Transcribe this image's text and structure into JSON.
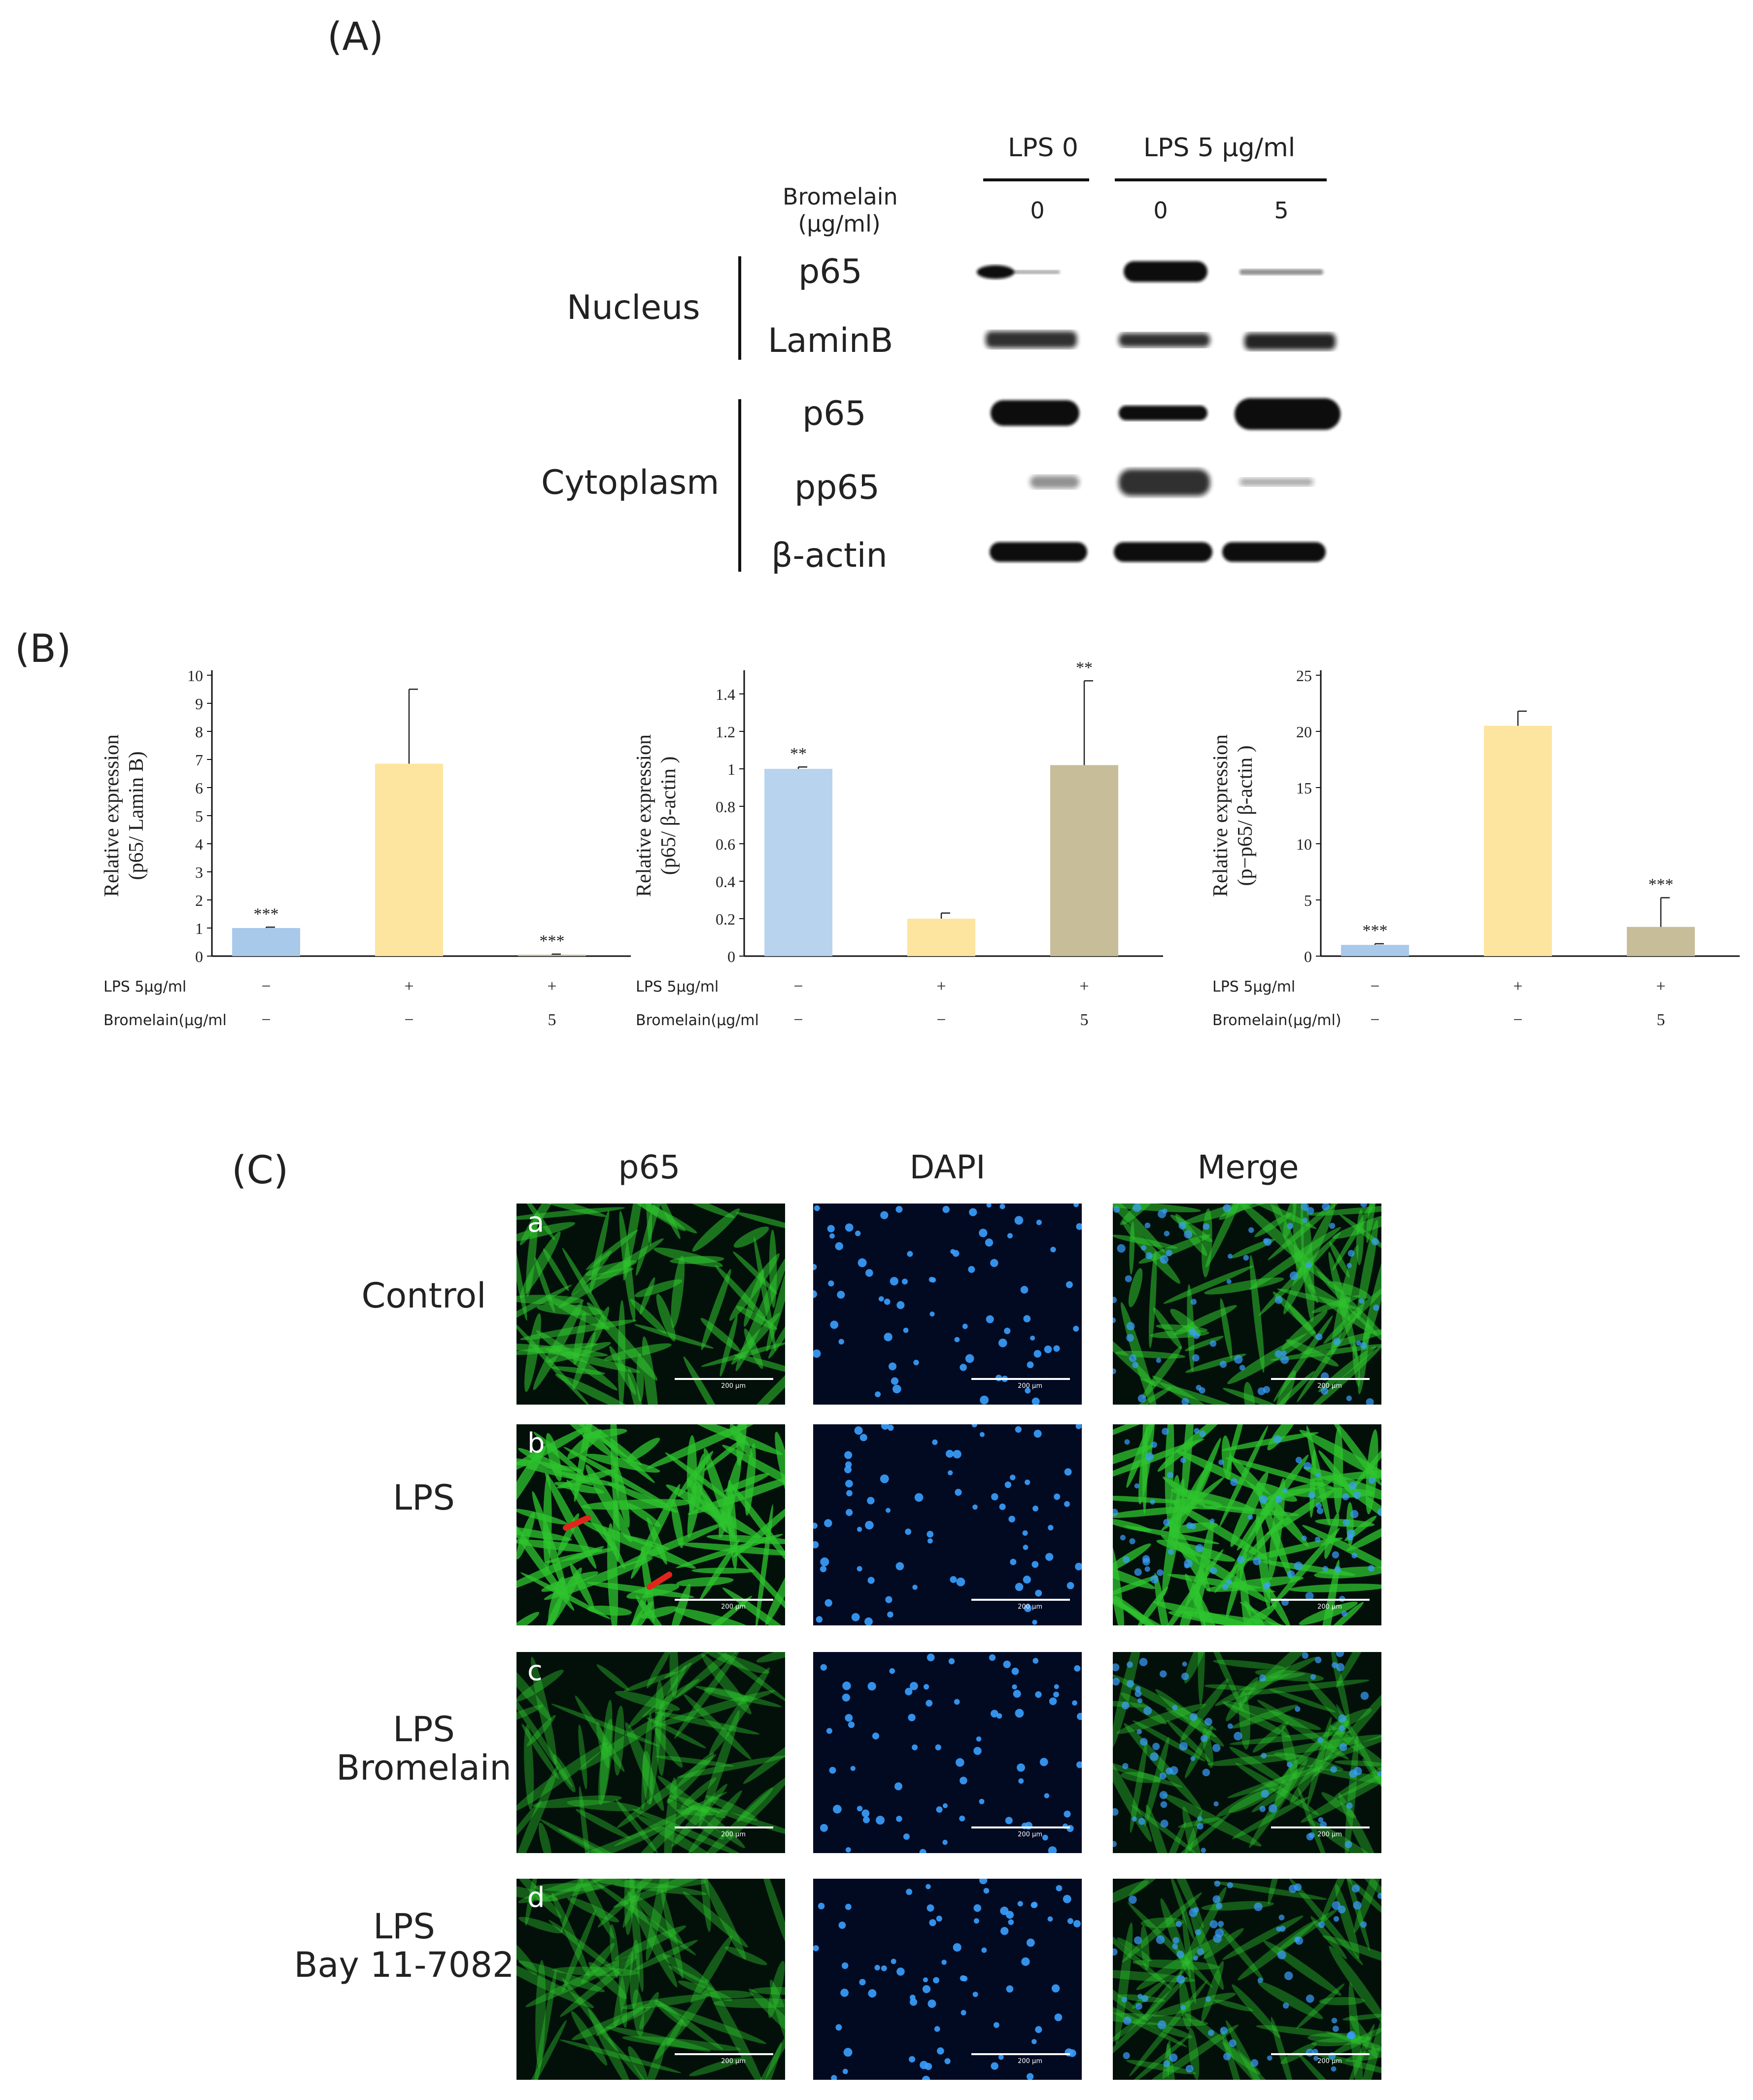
{
  "panel_labels": {
    "a": "(A)",
    "b": "(B)",
    "c": "(C)"
  },
  "western_blot": {
    "lps_groups": [
      {
        "label": "LPS 0"
      },
      {
        "label": "LPS 5 μg/ml"
      }
    ],
    "bromelain_header": [
      "Bromelain",
      "(μg/ml)"
    ],
    "bromelain_doses": [
      "0",
      "0",
      "5"
    ],
    "compartments": [
      {
        "name": "Nucleus",
        "proteins": [
          "p65",
          "LaminB"
        ]
      },
      {
        "name": "Cytoplasm",
        "proteins": [
          "p65",
          "pp65",
          "β-actin"
        ]
      }
    ],
    "colors": {
      "band": "#111111"
    }
  },
  "chart_data": [
    {
      "type": "bar",
      "ylabel_lines": [
        "Relative expression",
        "(p65/ Lamin B)"
      ],
      "ylim": [
        0,
        10
      ],
      "yticks": [
        "0",
        "1",
        "2",
        "3",
        "4",
        "5",
        "6",
        "7",
        "8",
        "9",
        "10"
      ],
      "values": [
        1.0,
        6.85,
        0.05
      ],
      "errors": [
        0.03,
        2.65,
        0.02
      ],
      "significance": [
        "***",
        "",
        "***"
      ],
      "colors": [
        "#a8c9ea",
        "#fde5a0",
        "#c7bd99"
      ],
      "row_lps_label": "LPS 5μg/ml",
      "row_lps": [
        "−",
        "+",
        "+"
      ],
      "row_brom_label": "Bromelain(μg/ml",
      "row_brom": [
        "−",
        "−",
        "5"
      ]
    },
    {
      "type": "bar",
      "ylabel_lines": [
        "Relative expression",
        "(p65/ β-actin )"
      ],
      "ylim": [
        0,
        1.5
      ],
      "yticks": [
        "0",
        "0.2",
        "0.4",
        "0.6",
        "0.8",
        "1",
        "1.2",
        "1.4"
      ],
      "values": [
        1.0,
        0.2,
        1.02
      ],
      "errors": [
        0.01,
        0.03,
        0.45
      ],
      "significance": [
        "**",
        "",
        "**"
      ],
      "colors": [
        "#b8d3ee",
        "#fde5a0",
        "#c7bd99"
      ],
      "row_lps_label": "LPS 5μg/ml",
      "row_lps": [
        "−",
        "+",
        "+"
      ],
      "row_brom_label": "Bromelain(μg/ml",
      "row_brom": [
        "−",
        "−",
        "5"
      ]
    },
    {
      "type": "bar",
      "ylabel_lines": [
        "Relative expression",
        "(p−p65/ β-actin )"
      ],
      "ylim": [
        0,
        25
      ],
      "yticks": [
        "0",
        "5",
        "10",
        "15",
        "20",
        "25"
      ],
      "values": [
        1.0,
        20.5,
        2.6
      ],
      "errors": [
        0.1,
        1.3,
        2.6
      ],
      "significance": [
        "***",
        "",
        "***"
      ],
      "colors": [
        "#a8c9ea",
        "#fde5a0",
        "#c7bd99"
      ],
      "row_lps_label": "LPS 5μg/ml",
      "row_lps": [
        "−",
        "+",
        "+"
      ],
      "row_brom_label": "Bromelain(μg/ml)",
      "row_brom": [
        "−",
        "−",
        "5"
      ]
    }
  ],
  "microscopy": {
    "columns": [
      "p65",
      "DAPI",
      "Merge"
    ],
    "rows": [
      {
        "letter": "a",
        "label_lines": [
          "Control"
        ]
      },
      {
        "letter": "b",
        "label_lines": [
          "LPS"
        ]
      },
      {
        "letter": "c",
        "label_lines": [
          "LPS",
          "Bromelain"
        ]
      },
      {
        "letter": "d",
        "label_lines": [
          "LPS",
          "Bay 11-7082"
        ]
      }
    ],
    "scale_bar": "200 μm",
    "colors": {
      "p65": "#2fc42f",
      "dapi": "#3aa0ff",
      "background": "#03100a",
      "dapi_bg": "#020a22",
      "arrow": "#e0251d"
    }
  }
}
